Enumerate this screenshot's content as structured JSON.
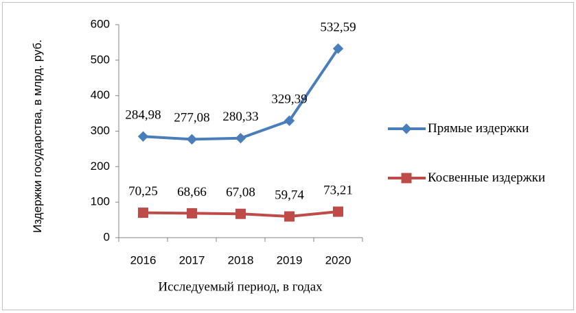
{
  "chart_data": {
    "type": "line",
    "categories": [
      "2016",
      "2017",
      "2018",
      "2019",
      "2020"
    ],
    "xlabel": "Исследуемый период, в годах",
    "ylabel": "Издержки государства, в млрд. руб.",
    "ylim": [
      0,
      600
    ],
    "yticks": [
      0,
      100,
      200,
      300,
      400,
      500,
      600
    ],
    "legend": "right",
    "series": [
      {
        "name": "Прямые издержки",
        "color": "#4a7ebb",
        "marker": "diamond",
        "values": [
          284.98,
          277.08,
          280.33,
          329.39,
          532.59
        ],
        "value_labels": [
          "284,98",
          "277,08",
          "280,33",
          "329,39",
          "532,59"
        ]
      },
      {
        "name": "Косвенные издержки",
        "color": "#be4b48",
        "marker": "square",
        "values": [
          70.25,
          68.66,
          67.08,
          59.74,
          73.21
        ],
        "value_labels": [
          "70,25",
          "68,66",
          "67,08",
          "59,74",
          "73,21"
        ]
      }
    ]
  }
}
